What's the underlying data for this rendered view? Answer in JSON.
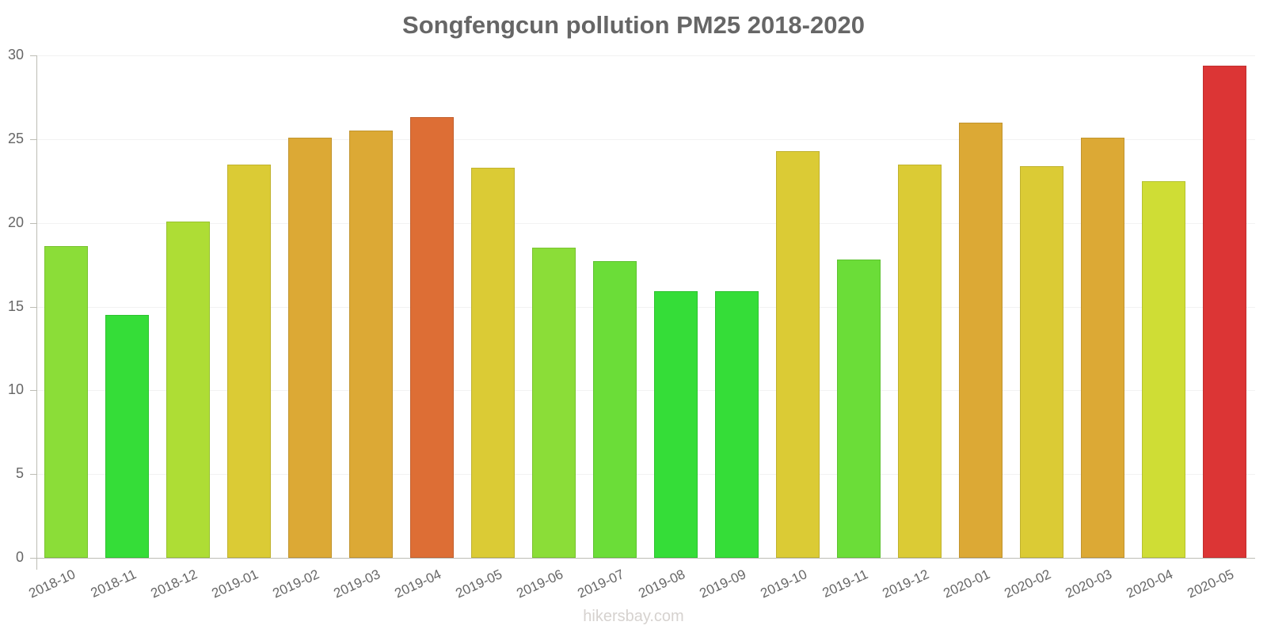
{
  "chart_data": {
    "type": "bar",
    "title": "Songfengcun pollution PM25 2018-2020",
    "xlabel": "",
    "ylabel": "",
    "ylim": [
      0,
      30
    ],
    "yticks": [
      0,
      5,
      10,
      15,
      20,
      25,
      30
    ],
    "grid": true,
    "legend": null,
    "categories": [
      "2018-10",
      "2018-11",
      "2018-12",
      "2019-01",
      "2019-02",
      "2019-03",
      "2019-04",
      "2019-05",
      "2019-06",
      "2019-07",
      "2019-08",
      "2019-09",
      "2019-10",
      "2019-11",
      "2019-12",
      "2020-01",
      "2020-02",
      "2020-03",
      "2020-04",
      "2020-05"
    ],
    "values": [
      18.6,
      14.5,
      20.1,
      23.5,
      25.1,
      25.5,
      26.3,
      23.3,
      18.5,
      17.7,
      15.9,
      15.9,
      24.3,
      17.8,
      23.5,
      26.0,
      23.4,
      25.1,
      22.5,
      29.4
    ],
    "colors": [
      "#8bdd38",
      "#35dd38",
      "#aedd35",
      "#dbcb35",
      "#dca935",
      "#dca935",
      "#dd6e35",
      "#dbcb35",
      "#8bdd38",
      "#6bdd38",
      "#35dd38",
      "#35dd38",
      "#dbcb35",
      "#6bdd38",
      "#dbcb35",
      "#dca935",
      "#dbcb35",
      "#dca935",
      "#cfdd35",
      "#dc3535"
    ]
  },
  "watermark": "hikersbay.com"
}
